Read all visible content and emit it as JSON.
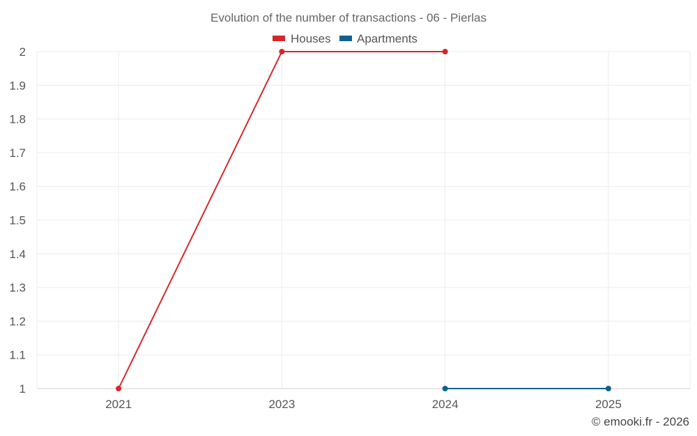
{
  "chart_data": {
    "type": "line",
    "title": "Evolution of the number of transactions - 06 - Pierlas",
    "categories": [
      "2021",
      "2023",
      "2024",
      "2025"
    ],
    "series": [
      {
        "name": "Houses",
        "color": "#d62728",
        "values": [
          1,
          2,
          2,
          null
        ]
      },
      {
        "name": "Apartments",
        "color": "#0e6292",
        "values": [
          null,
          null,
          1,
          1
        ]
      }
    ],
    "ylim": [
      1,
      2
    ],
    "yticks": [
      "1",
      "1.1",
      "1.2",
      "1.3",
      "1.4",
      "1.5",
      "1.6",
      "1.7",
      "1.8",
      "1.9",
      "2"
    ],
    "xlabel": "",
    "ylabel": "",
    "legend_position": "top-center",
    "grid": true
  },
  "credit": "© emooki.fr - 2026"
}
